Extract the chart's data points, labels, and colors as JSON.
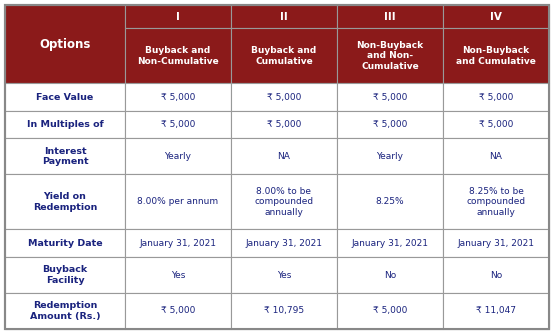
{
  "header_bg": "#8B1A1A",
  "header_text_color": "#FFFFFF",
  "cell_text_color": "#1A237E",
  "border_color": "#999999",
  "col_headers_roman": [
    "I",
    "II",
    "III",
    "IV"
  ],
  "col_headers_sub": [
    "Buyback and\nNon-Cumulative",
    "Buyback and\nCumulative",
    "Non-Buyback\nand Non-\nCumulative",
    "Non-Buyback\nand Cumulative"
  ],
  "row_labels": [
    "Face Value",
    "In Multiples of",
    "Interest\nPayment",
    "Yield on\nRedemption",
    "Maturity Date",
    "Buyback\nFacility",
    "Redemption\nAmount (Rs.)"
  ],
  "table_data": [
    [
      "₹ 5,000",
      "₹ 5,000",
      "₹ 5,000",
      "₹ 5,000"
    ],
    [
      "₹ 5,000",
      "₹ 5,000",
      "₹ 5,000",
      "₹ 5,000"
    ],
    [
      "Yearly",
      "NA",
      "Yearly",
      "NA"
    ],
    [
      "8.00% per annum",
      "8.00% to be\ncompounded\nannually",
      "8.25%",
      "8.25% to be\ncompounded\nannually"
    ],
    [
      "January 31, 2021",
      "January 31, 2021",
      "January 31, 2021",
      "January 31, 2021"
    ],
    [
      "Yes",
      "Yes",
      "No",
      "No"
    ],
    [
      "₹ 5,000",
      "₹ 10,795",
      "₹ 5,000",
      "₹ 11,047"
    ]
  ],
  "fig_width": 5.54,
  "fig_height": 3.34,
  "dpi": 100
}
